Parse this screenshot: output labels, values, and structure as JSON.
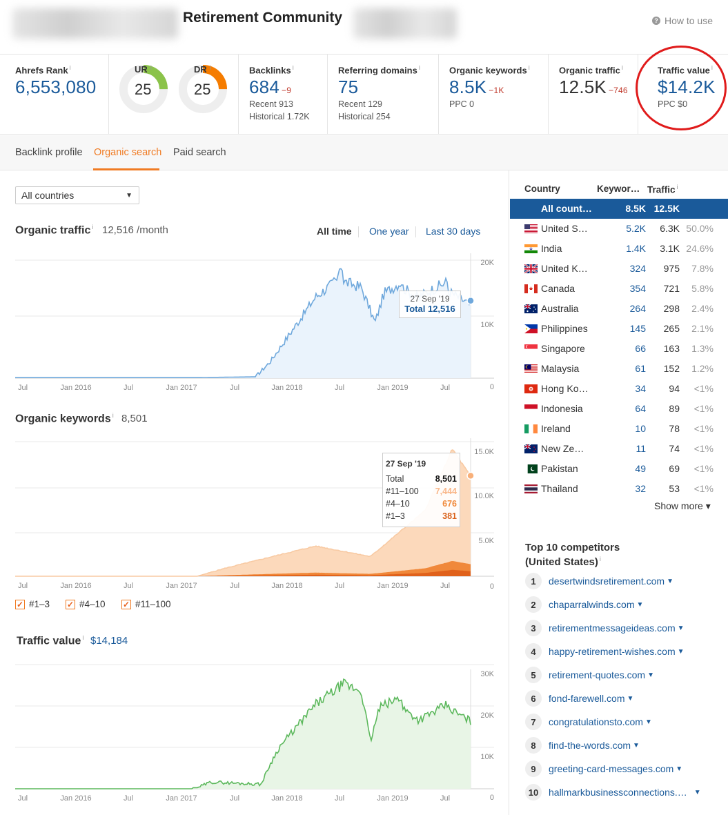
{
  "header": {
    "title": "Retirement Community",
    "how_to_use": "How to use",
    "info": "i"
  },
  "metrics": {
    "ahrefs_rank": {
      "label": "Ahrefs Rank",
      "value": "6,553,080"
    },
    "ur": {
      "label": "UR",
      "value": "25",
      "level": 0.25,
      "color": "#8bc34a"
    },
    "dr": {
      "label": "DR",
      "value": "25",
      "level": 0.25,
      "color": "#f57c00"
    },
    "backlinks": {
      "label": "Backlinks",
      "value": "684",
      "delta": "−9",
      "recent": "Recent 913",
      "historical": "Historical 1.72K"
    },
    "referring_domains": {
      "label": "Referring domains",
      "value": "75",
      "recent": "Recent 129",
      "historical": "Historical 254"
    },
    "organic_keywords": {
      "label": "Organic keywords",
      "value": "8.5K",
      "delta": "−1K",
      "ppc": "PPC 0"
    },
    "organic_traffic": {
      "label": "Organic traffic",
      "value": "12.5K",
      "delta": "−746"
    },
    "traffic_value": {
      "label": "Traffic value",
      "value": "$14.2K",
      "ppc": "PPC $0"
    }
  },
  "tabs": [
    {
      "label": "Backlink profile"
    },
    {
      "label": "Organic search"
    },
    {
      "label": "Paid search"
    }
  ],
  "filter": {
    "country_select": "All countries"
  },
  "ranges": {
    "all": "All time",
    "year": "One year",
    "month": "Last 30 days"
  },
  "x_ticks": [
    "Jul",
    "Jan 2016",
    "Jul",
    "Jan 2017",
    "Jul",
    "Jan 2018",
    "Jul",
    "Jan 2019",
    "Jul"
  ],
  "organic_traffic_section": {
    "title": "Organic traffic",
    "value": "12,516 /month",
    "y_ticks": [
      "20K",
      "10K",
      "0"
    ],
    "tooltip": {
      "date": "27 Sep '19",
      "total": "Total 12,516"
    }
  },
  "organic_keywords_section": {
    "title": "Organic keywords",
    "value": "8,501",
    "y_ticks": [
      "15.0K",
      "10.0K",
      "5.0K",
      "0"
    ],
    "tooltip": {
      "date": "27 Sep '19",
      "rows": [
        {
          "label": "Total",
          "value": "8,501",
          "color": "#111111"
        },
        {
          "label": "#11–100",
          "value": "7,444",
          "color": "#f9b78a"
        },
        {
          "label": "#4–10",
          "value": "676",
          "color": "#f08a3c"
        },
        {
          "label": "#1–3",
          "value": "381",
          "color": "#d9621b"
        }
      ]
    },
    "legend": [
      "#1–3",
      "#4–10",
      "#11–100"
    ],
    "check": "✓"
  },
  "traffic_value_section": {
    "title": "Traffic value",
    "value": "$14,184",
    "y_ticks": [
      "30K",
      "20K",
      "10K",
      "0"
    ]
  },
  "countries": {
    "headers": {
      "country": "Country",
      "keywords": "Keywor…",
      "traffic": "Traffic"
    },
    "rows": [
      {
        "name": "All count…",
        "kw": "8.5K",
        "traffic": "12.5K",
        "pct": "",
        "flag": "none"
      },
      {
        "name": "United S…",
        "kw": "5.2K",
        "traffic": "6.3K",
        "pct": "50.0%",
        "flag": "us"
      },
      {
        "name": "India",
        "kw": "1.4K",
        "traffic": "3.1K",
        "pct": "24.6%",
        "flag": "in"
      },
      {
        "name": "United K…",
        "kw": "324",
        "traffic": "975",
        "pct": "7.8%",
        "flag": "gb"
      },
      {
        "name": "Canada",
        "kw": "354",
        "traffic": "721",
        "pct": "5.8%",
        "flag": "ca"
      },
      {
        "name": "Australia",
        "kw": "264",
        "traffic": "298",
        "pct": "2.4%",
        "flag": "au"
      },
      {
        "name": "Philippines",
        "kw": "145",
        "traffic": "265",
        "pct": "2.1%",
        "flag": "ph"
      },
      {
        "name": "Singapore",
        "kw": "66",
        "traffic": "163",
        "pct": "1.3%",
        "flag": "sg"
      },
      {
        "name": "Malaysia",
        "kw": "61",
        "traffic": "152",
        "pct": "1.2%",
        "flag": "my"
      },
      {
        "name": "Hong Ko…",
        "kw": "34",
        "traffic": "94",
        "pct": "<1%",
        "flag": "hk"
      },
      {
        "name": "Indonesia",
        "kw": "64",
        "traffic": "89",
        "pct": "<1%",
        "flag": "id"
      },
      {
        "name": "Ireland",
        "kw": "10",
        "traffic": "78",
        "pct": "<1%",
        "flag": "ie"
      },
      {
        "name": "New Ze…",
        "kw": "11",
        "traffic": "74",
        "pct": "<1%",
        "flag": "nz"
      },
      {
        "name": "Pakistan",
        "kw": "49",
        "traffic": "69",
        "pct": "<1%",
        "flag": "pk"
      },
      {
        "name": "Thailand",
        "kw": "32",
        "traffic": "53",
        "pct": "<1%",
        "flag": "th"
      }
    ],
    "show_more": "Show more ▾"
  },
  "competitors": {
    "title_line1": "Top 10 competitors",
    "title_line2": "(United States)",
    "items": [
      {
        "num": "1",
        "domain": "desertwindsretirement.com"
      },
      {
        "num": "2",
        "domain": "chaparralwinds.com"
      },
      {
        "num": "3",
        "domain": "retirementmessageideas.com"
      },
      {
        "num": "4",
        "domain": "happy-retirement-wishes.com"
      },
      {
        "num": "5",
        "domain": "retirement-quotes.com"
      },
      {
        "num": "6",
        "domain": "fond-farewell.com"
      },
      {
        "num": "7",
        "domain": "congratulationsto.com"
      },
      {
        "num": "8",
        "domain": "find-the-words.com"
      },
      {
        "num": "9",
        "domain": "greeting-card-messages.com"
      },
      {
        "num": "10",
        "domain": "hallmarkbusinessconnections.…"
      }
    ]
  },
  "colors": {
    "link": "#1a5a9a",
    "accent": "#f07b23",
    "traffic_line": "#6fa8dc",
    "value_line": "#5cb85c",
    "circle": "#e01b1b"
  }
}
